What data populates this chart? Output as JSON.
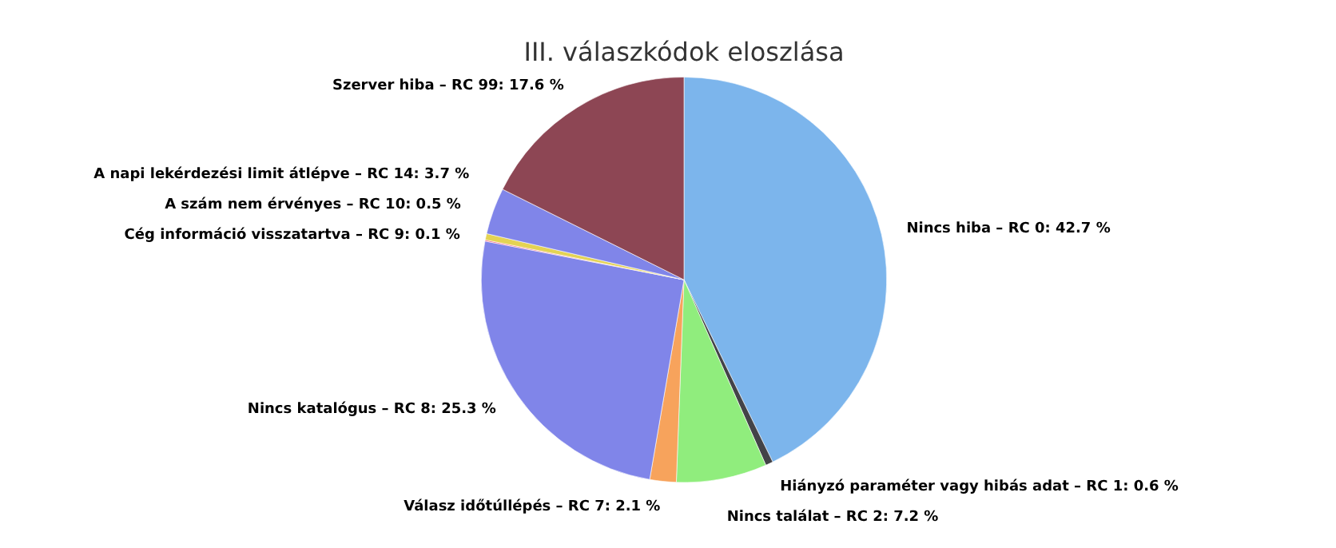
{
  "chart_data": {
    "type": "pie",
    "title": "III. válaszkódok eloszlása",
    "categories": [
      "Nincs hiba – RC 0",
      "Hiányzó paraméter vagy hibás adat – RC 1",
      "Nincs találat – RC 2",
      "Válasz időtúllépés – RC 7",
      "Nincs katalógus – RC 8",
      "Cég információ visszatartva – RC 9",
      "A szám nem érvényes – RC 10",
      "A napi lekérdezési limit átlépve – RC 14",
      "Szerver hiba – RC 99"
    ],
    "values": [
      42.7,
      0.6,
      7.2,
      2.1,
      25.3,
      0.1,
      0.5,
      3.7,
      17.6
    ],
    "value_labels": [
      "42.7 %",
      "0.6 %",
      "7.2 %",
      "2.1 %",
      "25.3 %",
      "0.1 %",
      "0.5 %",
      "3.7 %",
      "17.6 %"
    ],
    "colors": [
      "#7cb5ec",
      "#434348",
      "#90ed7d",
      "#f7a35c",
      "#8085e9",
      "#f15c80",
      "#e4d354",
      "#8085e9",
      "#8d4654"
    ],
    "legend": false
  }
}
